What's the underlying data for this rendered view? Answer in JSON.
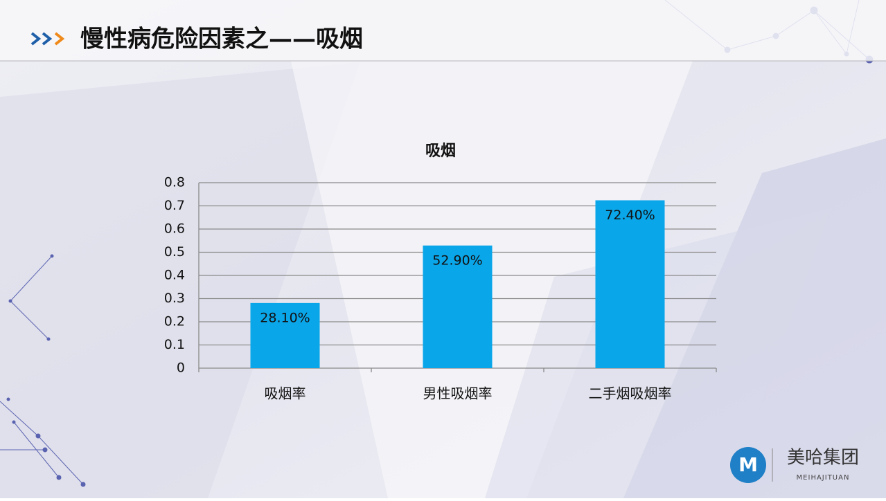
{
  "slide_title": "慢性病危险因素之——吸烟",
  "logo": {
    "name": "美哈集团",
    "subtitle": "MEIHAJITUAN"
  },
  "chart_data": {
    "type": "bar",
    "title": "吸烟",
    "categories": [
      "吸烟率",
      "男性吸烟率",
      "二手烟吸烟率"
    ],
    "values": [
      0.281,
      0.529,
      0.724
    ],
    "value_labels": [
      "28.10%",
      "52.90%",
      "72.40%"
    ],
    "color": "#0aa6ea",
    "ylim": [
      0,
      0.8
    ],
    "yticks": [
      0,
      0.1,
      0.2,
      0.3,
      0.4,
      0.5,
      0.6,
      0.7,
      0.8
    ],
    "grid": true
  }
}
